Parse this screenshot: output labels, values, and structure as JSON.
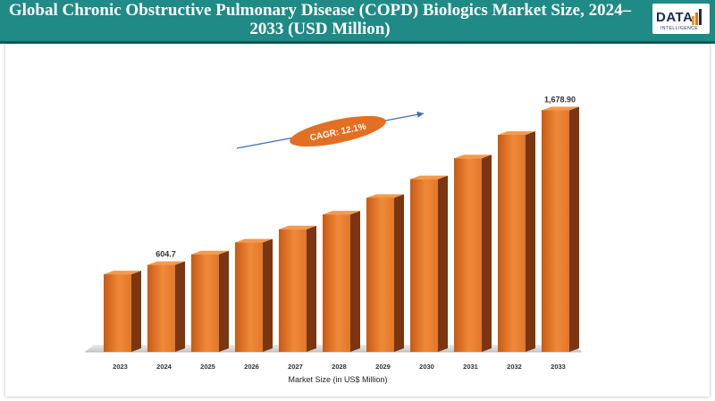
{
  "header": {
    "title": "Global Chronic Obstructive Pulmonary Disease (COPD) Biologics Market Size, 2024–2033 (USD Million)",
    "logo_text": "DATA",
    "logo_sub": "INTELLIGENCE"
  },
  "colors": {
    "header_bg": "#1f8a86",
    "bar_front": "#e0701f",
    "bar_side": "#7a3610",
    "cagr_ellipse": "#e36f22",
    "arrow": "#3a6fb7"
  },
  "chart_data": {
    "type": "bar",
    "style": "3d-column",
    "categories": [
      "2023",
      "2024",
      "2025",
      "2026",
      "2027",
      "2028",
      "2029",
      "2030",
      "2031",
      "2032",
      "2033"
    ],
    "values": [
      539.4,
      604.7,
      678.0,
      760.1,
      852.1,
      955.2,
      1070.8,
      1200.4,
      1345.6,
      1508.4,
      1678.9
    ],
    "data_labels": [
      {
        "index": 1,
        "text": "604.7"
      },
      {
        "index": 10,
        "text": "1,678.90"
      }
    ],
    "xlabel": "Market Size (in US$ Million)",
    "ylabel": "",
    "ylim": [
      0,
      1800
    ],
    "grid": false,
    "legend": "none",
    "annotation": {
      "text": "CAGR: 12.1%"
    }
  }
}
